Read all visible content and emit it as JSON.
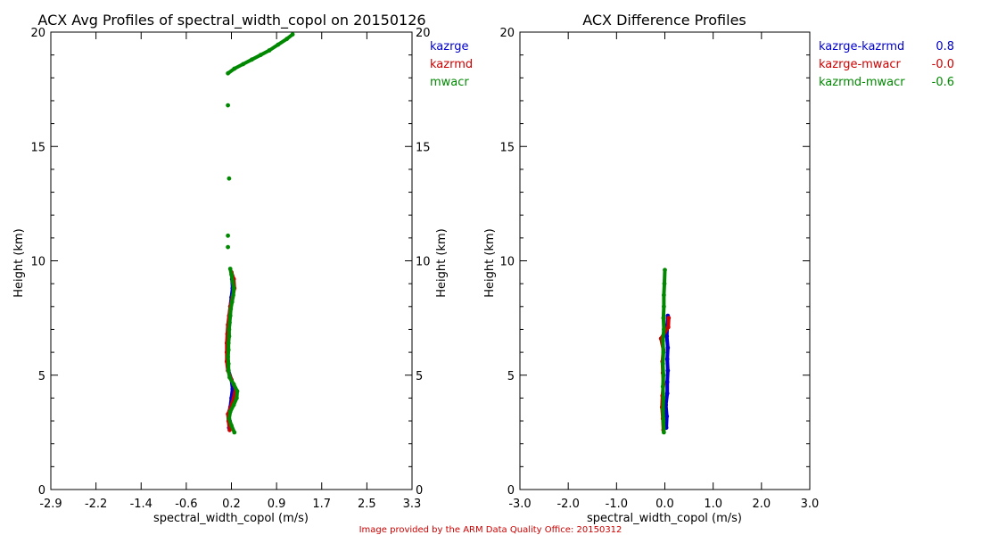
{
  "footer": {
    "text": "Image provided by the ARM Data Quality Office: 20150312",
    "color": "#cc0000"
  },
  "chart_data": [
    {
      "type": "scatter",
      "title": "ACX Avg Profiles of spectral_width_copol on 20150126",
      "xlabel": "spectral_width_copol (m/s)",
      "ylabel": "Height (km)",
      "ylabel_right": "Height (km)",
      "xlim": [
        -2.9,
        3.3
      ],
      "ylim": [
        0,
        20
      ],
      "xticks": [
        "-2.9",
        "-2.2",
        "-1.4",
        "-0.6",
        "0.2",
        "0.9",
        "1.7",
        "2.5",
        "3.3"
      ],
      "yticks": [
        "0",
        "5",
        "10",
        "15",
        "20"
      ],
      "grid": false,
      "legend": "right-outside",
      "series": [
        {
          "name": "kazrge",
          "color": "#0000cc",
          "points": [
            [
              0.16,
              2.7
            ],
            [
              0.17,
              3.0
            ],
            [
              0.15,
              3.3
            ],
            [
              0.18,
              3.6
            ],
            [
              0.2,
              4.0
            ],
            [
              0.22,
              4.4
            ],
            [
              0.2,
              4.8
            ],
            [
              0.15,
              5.2
            ],
            [
              0.14,
              5.6
            ],
            [
              0.14,
              6.0
            ],
            [
              0.14,
              6.4
            ],
            [
              0.15,
              6.8
            ],
            [
              0.16,
              7.2
            ],
            [
              0.17,
              7.6
            ],
            [
              0.18,
              8.0
            ],
            [
              0.2,
              8.4
            ],
            [
              0.22,
              8.8
            ],
            [
              0.21,
              9.2
            ]
          ]
        },
        {
          "name": "kazrmd",
          "color": "#cc0000",
          "points": [
            [
              0.17,
              2.6
            ],
            [
              0.15,
              3.0
            ],
            [
              0.14,
              3.3
            ],
            [
              0.19,
              3.6
            ],
            [
              0.24,
              4.0
            ],
            [
              0.27,
              4.4
            ],
            [
              0.2,
              4.8
            ],
            [
              0.14,
              5.2
            ],
            [
              0.12,
              5.6
            ],
            [
              0.12,
              6.0
            ],
            [
              0.12,
              6.4
            ],
            [
              0.13,
              6.8
            ],
            [
              0.14,
              7.2
            ],
            [
              0.16,
              7.6
            ],
            [
              0.18,
              8.0
            ],
            [
              0.22,
              8.4
            ],
            [
              0.25,
              8.8
            ],
            [
              0.24,
              9.2
            ],
            [
              0.2,
              9.5
            ]
          ]
        },
        {
          "name": "mwacr",
          "color": "#008800",
          "points": [
            [
              0.25,
              2.5
            ],
            [
              0.2,
              2.8
            ],
            [
              0.16,
              3.1
            ],
            [
              0.18,
              3.4
            ],
            [
              0.24,
              3.7
            ],
            [
              0.29,
              4.0
            ],
            [
              0.3,
              4.3
            ],
            [
              0.24,
              4.6
            ],
            [
              0.17,
              4.9
            ],
            [
              0.15,
              5.2
            ],
            [
              0.15,
              5.5
            ],
            [
              0.14,
              5.8
            ],
            [
              0.15,
              6.1
            ],
            [
              0.15,
              6.4
            ],
            [
              0.16,
              6.7
            ],
            [
              0.16,
              7.0
            ],
            [
              0.17,
              7.3
            ],
            [
              0.18,
              7.6
            ],
            [
              0.19,
              7.9
            ],
            [
              0.21,
              8.2
            ],
            [
              0.23,
              8.5
            ],
            [
              0.24,
              8.8
            ],
            [
              0.22,
              9.1
            ],
            [
              0.2,
              9.4
            ],
            [
              0.18,
              9.65
            ],
            [
              0.14,
              10.6
            ],
            [
              0.14,
              11.1
            ],
            [
              0.16,
              13.6
            ],
            [
              0.14,
              16.8
            ],
            [
              0.14,
              18.2
            ],
            [
              0.25,
              18.4
            ],
            [
              0.4,
              18.6
            ],
            [
              0.55,
              18.8
            ],
            [
              0.7,
              19.0
            ],
            [
              0.85,
              19.2
            ],
            [
              1.0,
              19.45
            ],
            [
              1.15,
              19.7
            ],
            [
              1.25,
              19.9
            ]
          ]
        }
      ]
    },
    {
      "type": "scatter",
      "title": "ACX Difference Profiles",
      "xlabel": "spectral_width_copol (m/s)",
      "ylabel": "Height (km)",
      "xlim": [
        -3.0,
        3.0
      ],
      "ylim": [
        0,
        20
      ],
      "xticks": [
        "-3.0",
        "-2.0",
        "-1.0",
        "0.0",
        "1.0",
        "2.0",
        "3.0"
      ],
      "yticks": [
        "0",
        "5",
        "10",
        "15",
        "20"
      ],
      "grid": false,
      "legend": "right-outside",
      "series": [
        {
          "name": "kazrge-kazrmd",
          "value": "0.8",
          "color": "#0000cc",
          "points": [
            [
              0.03,
              2.7
            ],
            [
              0.04,
              3.2
            ],
            [
              0.02,
              3.7
            ],
            [
              0.05,
              4.2
            ],
            [
              0.05,
              4.7
            ],
            [
              0.06,
              5.2
            ],
            [
              0.05,
              5.7
            ],
            [
              0.06,
              6.2
            ],
            [
              0.04,
              6.7
            ],
            [
              0.05,
              7.2
            ],
            [
              0.06,
              7.6
            ]
          ]
        },
        {
          "name": "kazrge-mwacr",
          "value": "-0.0",
          "color": "#cc0000",
          "points": [
            [
              -0.03,
              2.6
            ],
            [
              -0.04,
              3.1
            ],
            [
              -0.06,
              3.6
            ],
            [
              -0.05,
              4.1
            ],
            [
              -0.03,
              4.6
            ],
            [
              -0.04,
              5.1
            ],
            [
              -0.05,
              5.6
            ],
            [
              -0.03,
              6.1
            ],
            [
              -0.08,
              6.6
            ],
            [
              0.07,
              7.1
            ],
            [
              0.08,
              7.5
            ]
          ]
        },
        {
          "name": "kazrmd-mwacr",
          "value": "-0.6",
          "color": "#008800",
          "points": [
            [
              -0.02,
              2.5
            ],
            [
              -0.03,
              3.0
            ],
            [
              -0.04,
              3.5
            ],
            [
              -0.03,
              4.0
            ],
            [
              -0.04,
              4.5
            ],
            [
              -0.03,
              5.0
            ],
            [
              -0.04,
              5.5
            ],
            [
              -0.03,
              6.0
            ],
            [
              -0.04,
              6.5
            ],
            [
              -0.02,
              7.0
            ],
            [
              -0.03,
              7.5
            ],
            [
              -0.02,
              8.0
            ],
            [
              -0.02,
              8.5
            ],
            [
              -0.01,
              9.0
            ],
            [
              0.0,
              9.6
            ]
          ]
        }
      ]
    }
  ]
}
